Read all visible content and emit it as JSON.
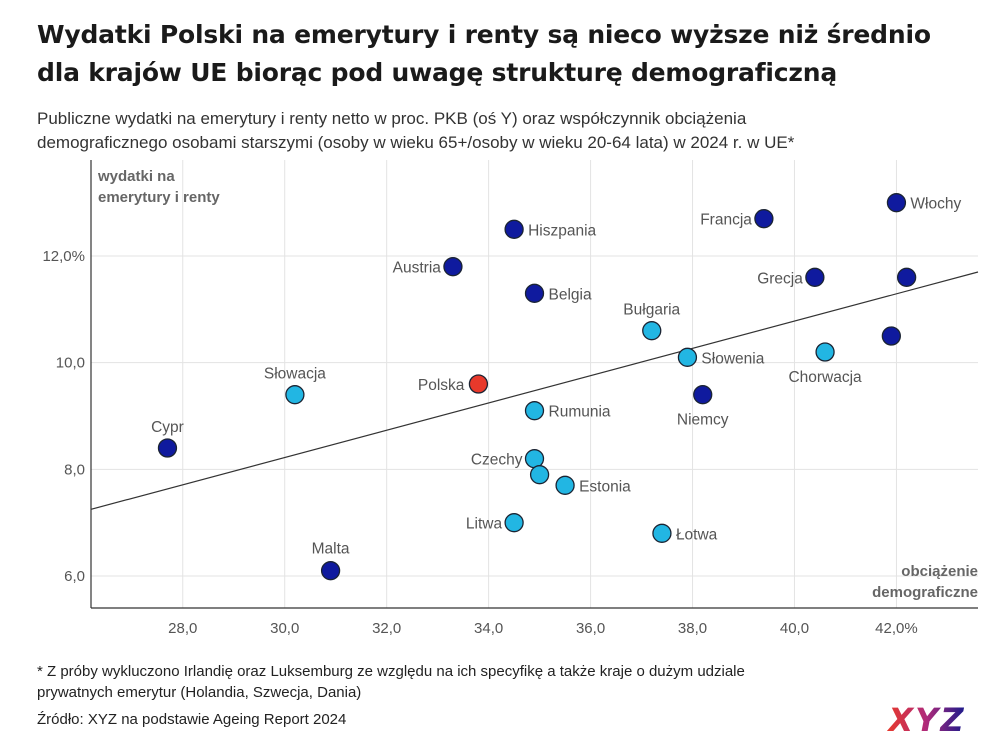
{
  "title_line1": "Wydatki Polski na emerytury i renty są nieco wyższe niż średnio",
  "title_line2": "dla krajów UE biorąc pod uwagę strukturę demograficzną",
  "subtitle_line1": "Publiczne wydatki na emerytury i renty netto w proc. PKB (oś Y) oraz współczynnik obciążenia",
  "subtitle_line2": "demograficznego osobami starszymi (osoby w wieku 65+/osoby w wieku 20-64 lata) w 2024 r. w UE*",
  "footnote_line1": "* Z próby wykluczono Irlandię oraz Luksemburg ze względu na ich specyfikę a także kraje o dużym udziale",
  "footnote_line2": "prywatnych emerytur (Holandia, Szwecja, Dania)",
  "source": "Źródło: XYZ na podstawie Ageing Report 2024",
  "logo_text": "XYZ",
  "colors": {
    "dark_blue": "#0f1a9e",
    "light_blue": "#22b6e3",
    "red": "#e8392b",
    "grid": "#e3e3e3",
    "trend": "#333333"
  },
  "chart_data": {
    "type": "scatter",
    "ylabel_line1": "wydatki na",
    "ylabel_line2": "emerytury i renty",
    "xlabel_line1": "obciążenie",
    "xlabel_line2": "demograficzne",
    "xlim": [
      26.2,
      43.6
    ],
    "ylim": [
      5.4,
      13.8
    ],
    "x_ticks": [
      28,
      30,
      32,
      34,
      36,
      38,
      40,
      42
    ],
    "x_tick_labels": [
      "28,0",
      "30,0",
      "32,0",
      "34,0",
      "36,0",
      "38,0",
      "40,0",
      "42,0%"
    ],
    "y_ticks": [
      6,
      8,
      10,
      12
    ],
    "y_tick_labels": [
      "6,0",
      "8,0",
      "10,0",
      "12,0%"
    ],
    "grid": true,
    "trendline": {
      "x": [
        26.2,
        43.6
      ],
      "y": [
        7.25,
        11.7
      ]
    },
    "points": [
      {
        "label": "Włochy",
        "x": 42.0,
        "y": 13.0,
        "group": "dark"
      },
      {
        "label": "Francja",
        "x": 39.4,
        "y": 12.7,
        "group": "dark"
      },
      {
        "label": "Hiszpania",
        "x": 34.5,
        "y": 12.5,
        "group": "dark"
      },
      {
        "label": "Austria",
        "x": 33.3,
        "y": 11.8,
        "group": "dark"
      },
      {
        "label": "Grecja",
        "x": 40.4,
        "y": 11.6,
        "group": "dark"
      },
      {
        "label": "",
        "x": 42.2,
        "y": 11.6,
        "group": "dark"
      },
      {
        "label": "Belgia",
        "x": 34.9,
        "y": 11.3,
        "group": "dark"
      },
      {
        "label": "Bułgaria",
        "x": 37.2,
        "y": 10.6,
        "group": "light"
      },
      {
        "label": "",
        "x": 41.9,
        "y": 10.5,
        "group": "dark"
      },
      {
        "label": "Chorwacja",
        "x": 40.6,
        "y": 10.2,
        "group": "light"
      },
      {
        "label": "Słowenia",
        "x": 37.9,
        "y": 10.1,
        "group": "light"
      },
      {
        "label": "Polska",
        "x": 33.8,
        "y": 9.6,
        "group": "red"
      },
      {
        "label": "Słowacja",
        "x": 30.2,
        "y": 9.4,
        "group": "light"
      },
      {
        "label": "Niemcy",
        "x": 38.2,
        "y": 9.4,
        "group": "dark"
      },
      {
        "label": "Rumunia",
        "x": 34.9,
        "y": 9.1,
        "group": "light"
      },
      {
        "label": "Cypr",
        "x": 27.7,
        "y": 8.4,
        "group": "dark"
      },
      {
        "label": "Czechy",
        "x": 34.9,
        "y": 8.2,
        "group": "light"
      },
      {
        "label": "",
        "x": 35.0,
        "y": 7.9,
        "group": "light"
      },
      {
        "label": "Estonia",
        "x": 35.5,
        "y": 7.7,
        "group": "light"
      },
      {
        "label": "Litwa",
        "x": 34.5,
        "y": 7.0,
        "group": "light"
      },
      {
        "label": "Łotwa",
        "x": 37.4,
        "y": 6.8,
        "group": "light"
      },
      {
        "label": "Malta",
        "x": 30.9,
        "y": 6.1,
        "group": "dark"
      }
    ]
  }
}
